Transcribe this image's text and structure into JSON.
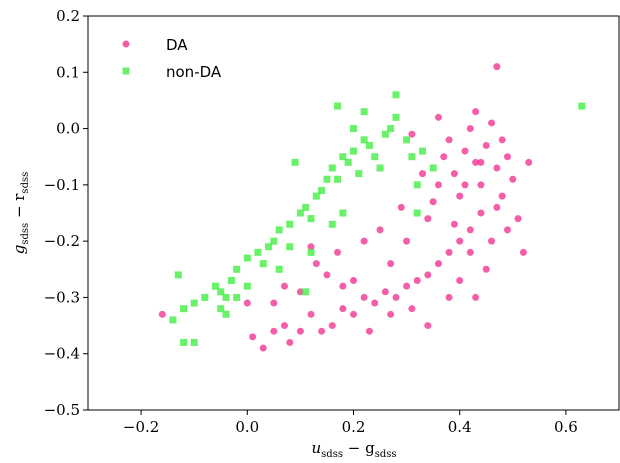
{
  "chart_data": {
    "type": "scatter",
    "x_label": [
      "u",
      "sdss",
      " − g",
      "sdss"
    ],
    "y_label": [
      "g",
      "sdss",
      " − r",
      "sdss"
    ],
    "xlim": [
      -0.3,
      0.7
    ],
    "ylim": [
      -0.5,
      0.2
    ],
    "xticks": [
      {
        "value": -0.2,
        "label": "−0.2"
      },
      {
        "value": 0.0,
        "label": "0.0"
      },
      {
        "value": 0.2,
        "label": "0.2"
      },
      {
        "value": 0.4,
        "label": "0.4"
      },
      {
        "value": 0.6,
        "label": "0.6"
      }
    ],
    "yticks": [
      {
        "value": -0.5,
        "label": "−0.5"
      },
      {
        "value": -0.4,
        "label": "−0.4"
      },
      {
        "value": -0.3,
        "label": "−0.3"
      },
      {
        "value": -0.2,
        "label": "−0.2"
      },
      {
        "value": -0.1,
        "label": "−0.1"
      },
      {
        "value": 0.0,
        "label": "0.0"
      },
      0.1,
      0.2
    ],
    "legend": "upper left",
    "series": [
      {
        "name": "DA",
        "color": "#f0288c",
        "marker": "circle",
        "x": [
          -0.16,
          0.0,
          0.01,
          0.03,
          0.05,
          0.07,
          0.08,
          0.1,
          0.12,
          0.14,
          0.16,
          0.18,
          0.2,
          0.22,
          0.24,
          0.26,
          0.28,
          0.3,
          0.32,
          0.34,
          0.36,
          0.38,
          0.4,
          0.42,
          0.07,
          0.1,
          0.13,
          0.17,
          0.2,
          0.23,
          0.27,
          0.31,
          0.15,
          0.05,
          0.12,
          0.25,
          0.3,
          0.34,
          0.36,
          0.37,
          0.38,
          0.39,
          0.4,
          0.41,
          0.42,
          0.43,
          0.44,
          0.45,
          0.46,
          0.47,
          0.48,
          0.49,
          0.5,
          0.51,
          0.53,
          0.52,
          0.47,
          0.44,
          0.42,
          0.46,
          0.39,
          0.35,
          0.33,
          0.31,
          0.36,
          0.43,
          0.48,
          0.45,
          0.4,
          0.49,
          0.41,
          0.44,
          0.38,
          0.34,
          0.27,
          0.22,
          0.18,
          0.29,
          0.47,
          0.43
        ],
        "values": [
          -0.33,
          -0.31,
          -0.37,
          -0.39,
          -0.36,
          -0.35,
          -0.38,
          -0.36,
          -0.33,
          -0.36,
          -0.35,
          -0.32,
          -0.33,
          -0.3,
          -0.31,
          -0.29,
          -0.3,
          -0.28,
          -0.27,
          -0.26,
          -0.24,
          -0.22,
          -0.2,
          -0.18,
          -0.28,
          -0.29,
          -0.24,
          -0.22,
          -0.27,
          -0.36,
          -0.33,
          -0.32,
          -0.26,
          -0.31,
          -0.21,
          -0.18,
          -0.2,
          -0.16,
          -0.1,
          -0.05,
          -0.02,
          -0.08,
          -0.12,
          -0.04,
          0.0,
          -0.06,
          -0.1,
          -0.03,
          0.01,
          -0.07,
          -0.12,
          -0.05,
          -0.09,
          -0.16,
          -0.06,
          -0.22,
          0.11,
          -0.15,
          -0.22,
          -0.2,
          -0.17,
          -0.13,
          -0.08,
          -0.01,
          0.02,
          0.03,
          -0.02,
          -0.25,
          -0.27,
          -0.18,
          -0.1,
          -0.06,
          -0.3,
          -0.35,
          -0.24,
          -0.2,
          -0.28,
          -0.14,
          -0.14,
          -0.3
        ]
      },
      {
        "name": "non-DA",
        "color": "#44ee44",
        "marker": "square",
        "x": [
          -0.12,
          -0.14,
          -0.12,
          -0.1,
          -0.13,
          -0.1,
          -0.08,
          -0.06,
          -0.05,
          -0.04,
          -0.03,
          -0.05,
          -0.02,
          -0.02,
          0.0,
          0.0,
          0.02,
          0.03,
          0.04,
          0.05,
          0.06,
          0.08,
          0.08,
          0.1,
          0.11,
          0.12,
          0.13,
          0.14,
          0.15,
          0.16,
          0.17,
          0.18,
          0.19,
          0.2,
          0.21,
          0.22,
          0.23,
          0.24,
          0.25,
          0.26,
          0.27,
          0.28,
          0.28,
          0.3,
          0.31,
          0.32,
          0.33,
          0.35,
          0.22,
          0.17,
          0.2,
          0.09,
          0.16,
          0.12,
          0.32,
          0.63,
          0.18,
          0.06,
          -0.04,
          0.11
        ],
        "values": [
          -0.32,
          -0.34,
          -0.38,
          -0.38,
          -0.26,
          -0.31,
          -0.3,
          -0.28,
          -0.29,
          -0.3,
          -0.27,
          -0.32,
          -0.25,
          -0.3,
          -0.28,
          -0.23,
          -0.22,
          -0.24,
          -0.21,
          -0.2,
          -0.18,
          -0.17,
          -0.21,
          -0.15,
          -0.14,
          -0.16,
          -0.12,
          -0.11,
          -0.09,
          -0.07,
          -0.09,
          -0.05,
          -0.06,
          -0.04,
          -0.08,
          -0.02,
          -0.03,
          -0.05,
          -0.07,
          -0.01,
          0.0,
          0.02,
          0.06,
          -0.02,
          -0.05,
          -0.1,
          -0.04,
          -0.07,
          0.03,
          0.04,
          0.0,
          -0.06,
          -0.17,
          -0.22,
          -0.15,
          0.04,
          -0.15,
          -0.25,
          -0.33,
          -0.29
        ]
      }
    ]
  }
}
